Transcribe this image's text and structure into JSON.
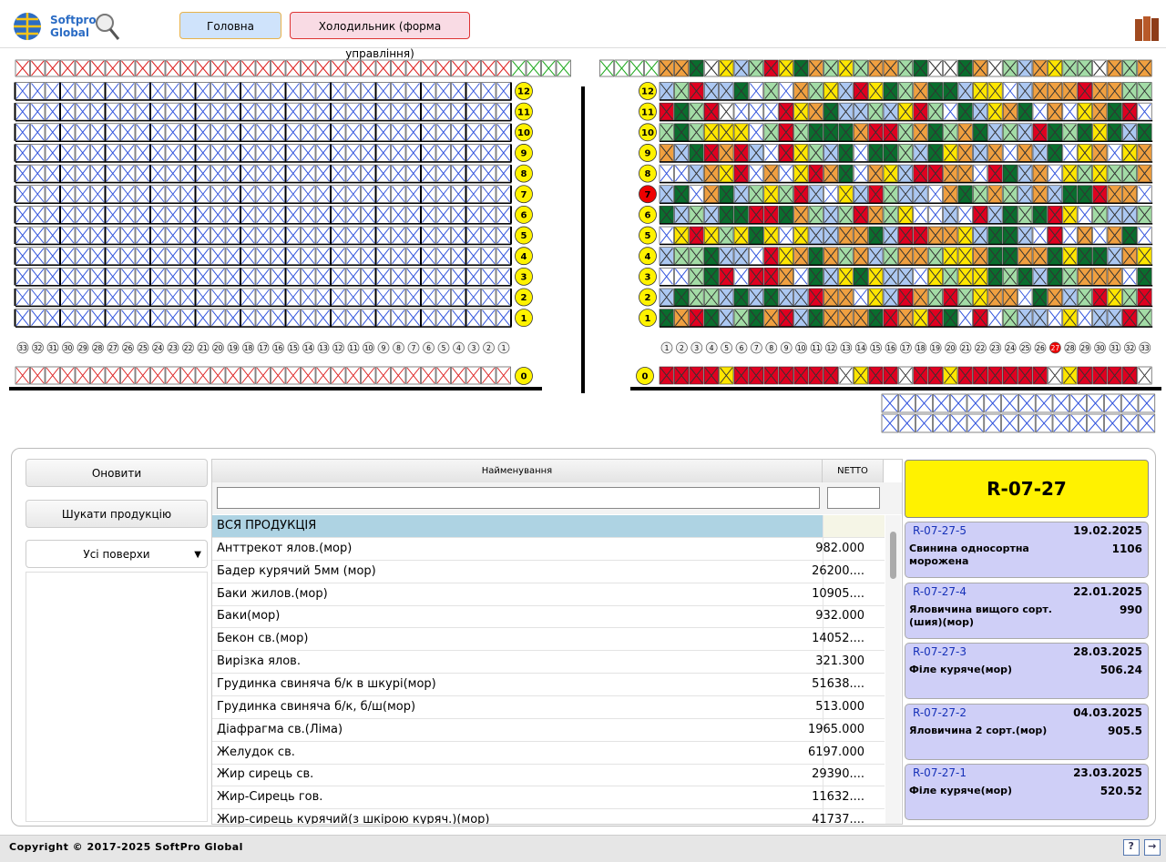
{
  "header": {
    "logo_line1": "Softpro",
    "logo_line2": "Global",
    "tabs": [
      "Головна",
      "Холодильник (форма управління)"
    ]
  },
  "rack": {
    "levels": [
      12,
      11,
      10,
      9,
      8,
      7,
      6,
      5,
      4,
      3,
      2,
      1
    ],
    "ground_level": 0,
    "columns": [
      1,
      2,
      3,
      4,
      5,
      6,
      7,
      8,
      9,
      10,
      11,
      12,
      13,
      14,
      15,
      16,
      17,
      18,
      19,
      20,
      21,
      22,
      23,
      24,
      25,
      26,
      27,
      28,
      29,
      30,
      31,
      32,
      33
    ],
    "selected_level": 7,
    "selected_column": 27
  },
  "controls": {
    "refresh": "Оновити",
    "search": "Шукати продукцію",
    "floor_select": "Усі поверхи"
  },
  "table": {
    "headers": [
      "Найменування",
      "NETTO"
    ],
    "rows": [
      [
        "ВСЯ ПРОДУКЦІЯ",
        ""
      ],
      [
        "Анттрекот ялов.(мор)",
        "982.000"
      ],
      [
        "Бадер курячий 5мм (мор)",
        "26200...."
      ],
      [
        "Баки жилов.(мор)",
        "10905...."
      ],
      [
        "Баки(мор)",
        "932.000"
      ],
      [
        "Бекон св.(мор)",
        "14052...."
      ],
      [
        "Вирізка ялов.",
        "321.300"
      ],
      [
        "Грудинка свиняча б/к в шкурі(мор)",
        "51638...."
      ],
      [
        "Грудинка свиняча б/к, б/ш(мор)",
        "513.000"
      ],
      [
        "Діафрагма св.(Ліма)",
        "1965.000"
      ],
      [
        "Желудок св.",
        "6197.000"
      ],
      [
        "Жир сирець св.",
        "29390...."
      ],
      [
        "Жир-Сирець гов.",
        "11632...."
      ],
      [
        "Жир-сирець курячий(з шкірою куряч.)(мор)",
        "41737...."
      ]
    ]
  },
  "cell_panel": {
    "title": "R-07-27",
    "items": [
      {
        "code": "R-07-27-5",
        "date": "19.02.2025",
        "product": "Свинина односортна морожена",
        "qty": "1106"
      },
      {
        "code": "R-07-27-4",
        "date": "22.01.2025",
        "product": "Яловичина вищого сорт.(шия)(мор)",
        "qty": "990"
      },
      {
        "code": "R-07-27-3",
        "date": "28.03.2025",
        "product": "Філе куряче(мор)",
        "qty": "506.24"
      },
      {
        "code": "R-07-27-2",
        "date": "04.03.2025",
        "product": "Яловичина 2 сорт.(мор)",
        "qty": "905.5"
      },
      {
        "code": "R-07-27-1",
        "date": "23.03.2025",
        "product": "Філе куряче(мор)",
        "qty": "520.52"
      }
    ]
  },
  "footer": {
    "copyright": "Copyright © 2017-2025 SoftPro Global"
  }
}
